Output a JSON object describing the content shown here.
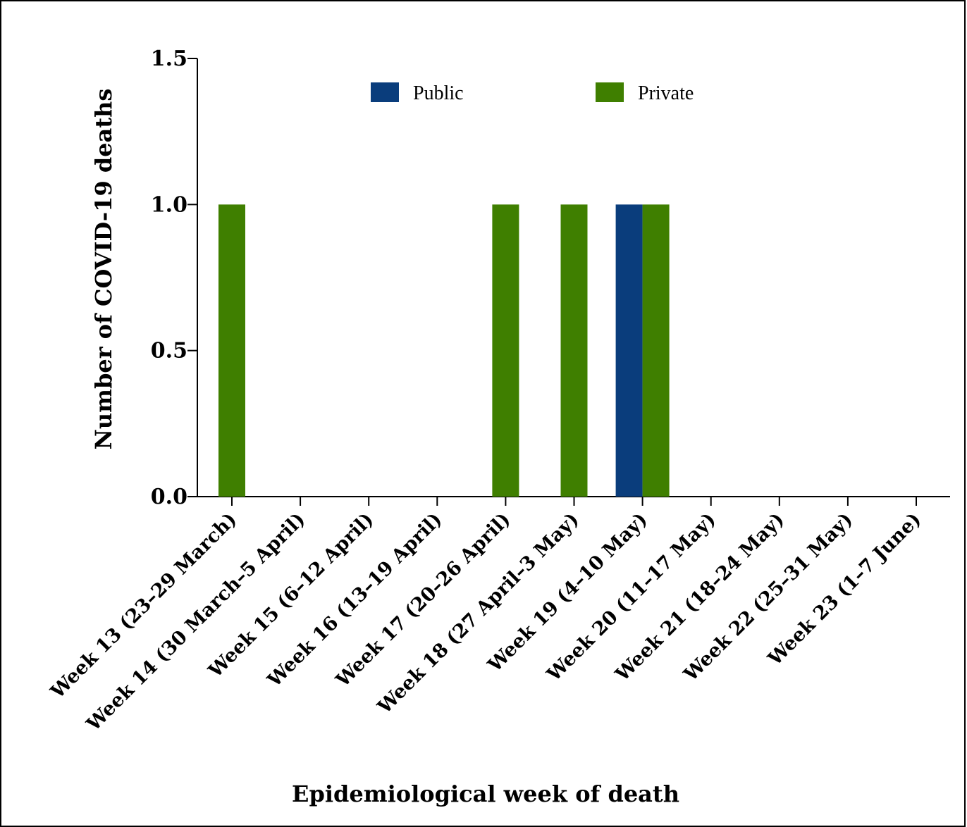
{
  "chart_data": {
    "type": "bar",
    "xlabel": "Epidemiological week of death",
    "ylabel": "Number of COVID-19 deaths",
    "ylim": [
      0,
      1.5
    ],
    "yticks": [
      "0.0",
      "0.5",
      "1.0",
      "1.5"
    ],
    "legend_position": "top",
    "grid": false,
    "categories": [
      "Week 13 (23–29 March)",
      "Week 14 (30 March–5 April)",
      "Week 15 (6–12 April)",
      "Week 16 (13–19 April)",
      "Week 17 (20–26 April)",
      "Week 18 (27 April–3 May)",
      "Week 19 (4–10 May)",
      "Week 20 (11–17 May)",
      "Week 21 (18–24 May)",
      "Week 22 (25–31 May)",
      "Week 23 (1–7 June)"
    ],
    "series": [
      {
        "name": "Public",
        "color": "#0a3d7c",
        "values": [
          0,
          0,
          0,
          0,
          0,
          0,
          1,
          0,
          0,
          0,
          0
        ]
      },
      {
        "name": "Private",
        "color": "#3f7f00",
        "values": [
          1,
          0,
          0,
          0,
          1,
          1,
          1,
          0,
          0,
          0,
          0
        ]
      }
    ]
  }
}
